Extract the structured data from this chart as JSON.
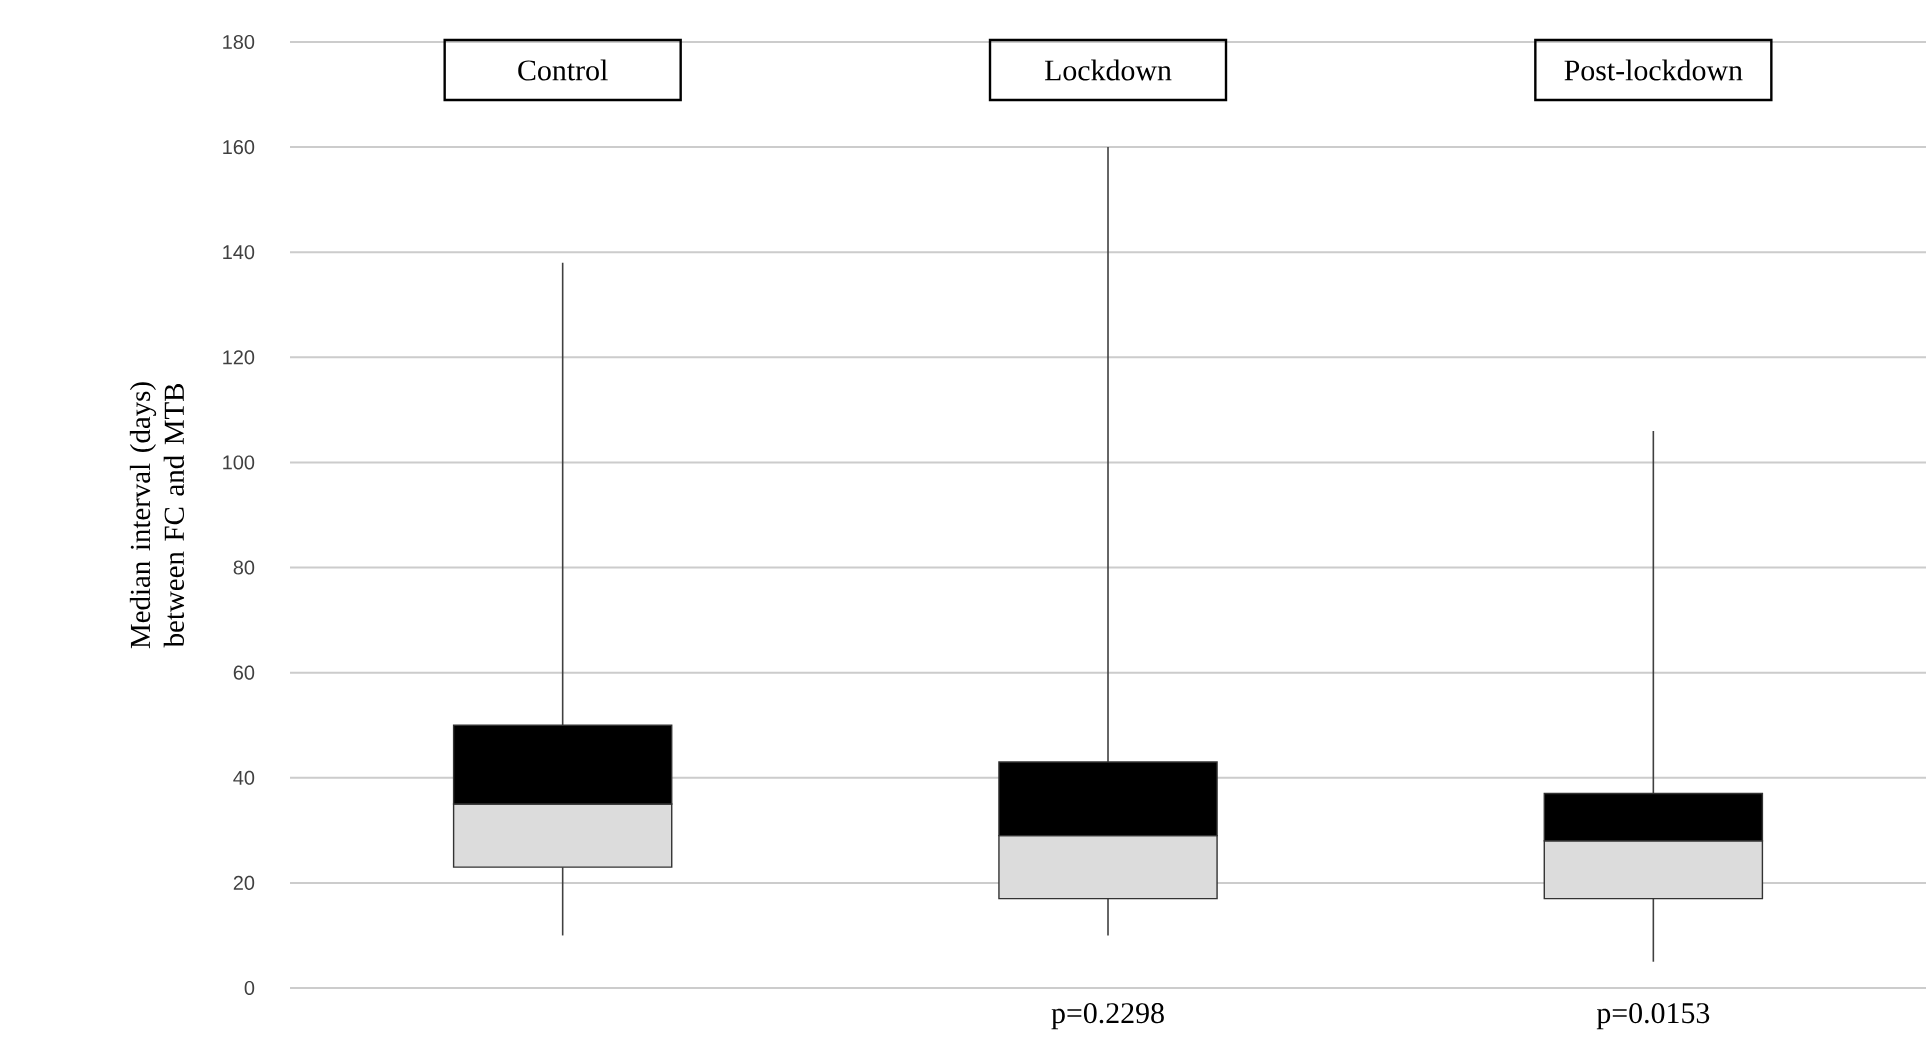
{
  "chart_data": {
    "type": "box",
    "ylabel": "Median interval (days) between FC and MTB",
    "categories": [
      "Control",
      "Lockdown",
      "Post-lockdown"
    ],
    "series": [
      {
        "color": "#dcdcdc",
        "boxes": [
          {
            "low": 10,
            "q1": 23,
            "median": 35,
            "q3": 50,
            "high": 138
          },
          {
            "low": 10,
            "q1": 17,
            "median": 29,
            "q3": 43,
            "high": 160
          },
          {
            "low": 5,
            "q1": 17,
            "median": 28,
            "q3": 37,
            "high": 106
          }
        ]
      }
    ],
    "ylim": [
      0,
      180
    ],
    "yticks": [
      0,
      20,
      40,
      60,
      80,
      100,
      120,
      140,
      160,
      180
    ],
    "grid": "y",
    "annotations": [
      "p=0.2298",
      "p=0.0153"
    ]
  }
}
